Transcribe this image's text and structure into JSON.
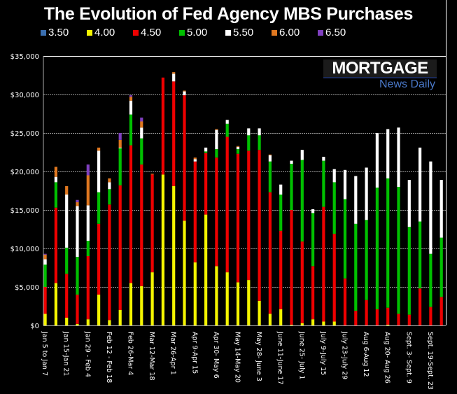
{
  "chart_data": {
    "type": "bar",
    "stacked": true,
    "title": "The Evolution of Fed Agency MBS Purchases",
    "xlabel": "",
    "ylabel": "",
    "ylim": [
      0,
      35000
    ],
    "y_ticks": [
      0,
      5000,
      10000,
      15000,
      20000,
      25000,
      30000,
      35000
    ],
    "y_tick_labels": [
      "$0",
      "$5,000",
      "$10,000",
      "$15,000",
      "$20,000",
      "$25,000",
      "$30,000",
      "$35,000"
    ],
    "grid": true,
    "legend_position": "top",
    "x_tick_labels": [
      "Jan 5 to Jan 7",
      "Jan 15-Jan 21",
      "Jan 29 - Feb 4",
      "Feb 12 - Feb 18",
      "Feb 26-Mar 4",
      "Mar 12-Mar 18",
      "Mar 26-Apr 1",
      "Apr 9-Apr 15",
      "Apr 30- May 6",
      "May 14-May 20",
      "May 28- June 3",
      "June 11-June 17",
      "June 25- July 1",
      "July 9-July 15",
      "July 23-July 29",
      "Aug 6-Aug 12",
      "Aug 20- Aug 26",
      "Sept. 3- Sept. 9",
      "Sept. 19-Sept. 23"
    ],
    "x_tick_every": 2,
    "n_bars": 38,
    "series": [
      {
        "name": "3.50",
        "color": "#3a6fb0",
        "values": [
          0,
          0,
          0,
          0,
          0,
          0,
          0,
          0,
          0,
          0,
          0,
          0,
          0,
          0,
          0,
          0,
          0,
          0,
          0,
          0,
          0,
          0,
          0,
          0,
          0,
          0,
          0,
          0,
          0,
          0,
          0,
          0,
          0,
          0,
          0,
          0,
          0,
          0
        ]
      },
      {
        "name": "4.00",
        "color": "#f5f500",
        "values": [
          1500,
          5500,
          1000,
          200,
          800,
          4000,
          700,
          2000,
          5500,
          5100,
          6900,
          19600,
          18100,
          13600,
          8200,
          14400,
          7700,
          6900,
          5600,
          5900,
          3200,
          1500,
          2100,
          100,
          300,
          800,
          500,
          500,
          0,
          0,
          0,
          0,
          100,
          0,
          0,
          0,
          0,
          0
        ]
      },
      {
        "name": "4.50",
        "color": "#ee0000",
        "values": [
          3500,
          9800,
          5700,
          3800,
          8200,
          9200,
          15000,
          16200,
          17900,
          15800,
          12700,
          12600,
          13600,
          16300,
          13100,
          8000,
          14100,
          17600,
          16700,
          16800,
          19600,
          15800,
          10200,
          14900,
          10600,
          6900,
          14900,
          11400,
          6100,
          1900,
          3300,
          2100,
          2200,
          1500,
          1400,
          4800,
          2400,
          3700
        ]
      },
      {
        "name": "5.00",
        "color": "#00c000",
        "values": [
          2900,
          3300,
          3400,
          4900,
          2000,
          4100,
          2000,
          4800,
          4000,
          3400,
          0,
          0,
          0,
          0,
          0,
          200,
          1100,
          1700,
          600,
          2000,
          1900,
          4000,
          4700,
          6000,
          10600,
          6900,
          6000,
          6700,
          10300,
          11300,
          10400,
          15800,
          16800,
          16500,
          11400,
          8700,
          6900,
          7700
        ]
      },
      {
        "name": "5.50",
        "color": "#ffffff",
        "values": [
          700,
          700,
          6900,
          6600,
          4600,
          5400,
          900,
          100,
          1800,
          1400,
          0,
          0,
          1000,
          500,
          300,
          500,
          2500,
          500,
          300,
          900,
          900,
          800,
          1300,
          400,
          1300,
          500,
          500,
          1700,
          3800,
          6200,
          6800,
          7100,
          6400,
          7700,
          6100,
          9600,
          12000,
          7500
        ]
      },
      {
        "name": "6.00",
        "color": "#e07820",
        "values": [
          600,
          1300,
          1100,
          500,
          3900,
          400,
          500,
          1000,
          500,
          800,
          100,
          0,
          200,
          100,
          200,
          0,
          100,
          0,
          100,
          0,
          0,
          100,
          0,
          0,
          0,
          0,
          0,
          0,
          0,
          0,
          0,
          0,
          0,
          0,
          0,
          0,
          0,
          0
        ]
      },
      {
        "name": "6.50",
        "color": "#8040c0",
        "values": [
          100,
          0,
          0,
          300,
          1400,
          0,
          0,
          900,
          200,
          500,
          0,
          0,
          0,
          0,
          0,
          0,
          0,
          0,
          0,
          0,
          0,
          0,
          0,
          0,
          0,
          0,
          0,
          0,
          0,
          0,
          0,
          0,
          0,
          0,
          0,
          0,
          0,
          0
        ]
      }
    ]
  },
  "logo": {
    "top": "MORTGAGE",
    "bottom": "News Daily"
  }
}
